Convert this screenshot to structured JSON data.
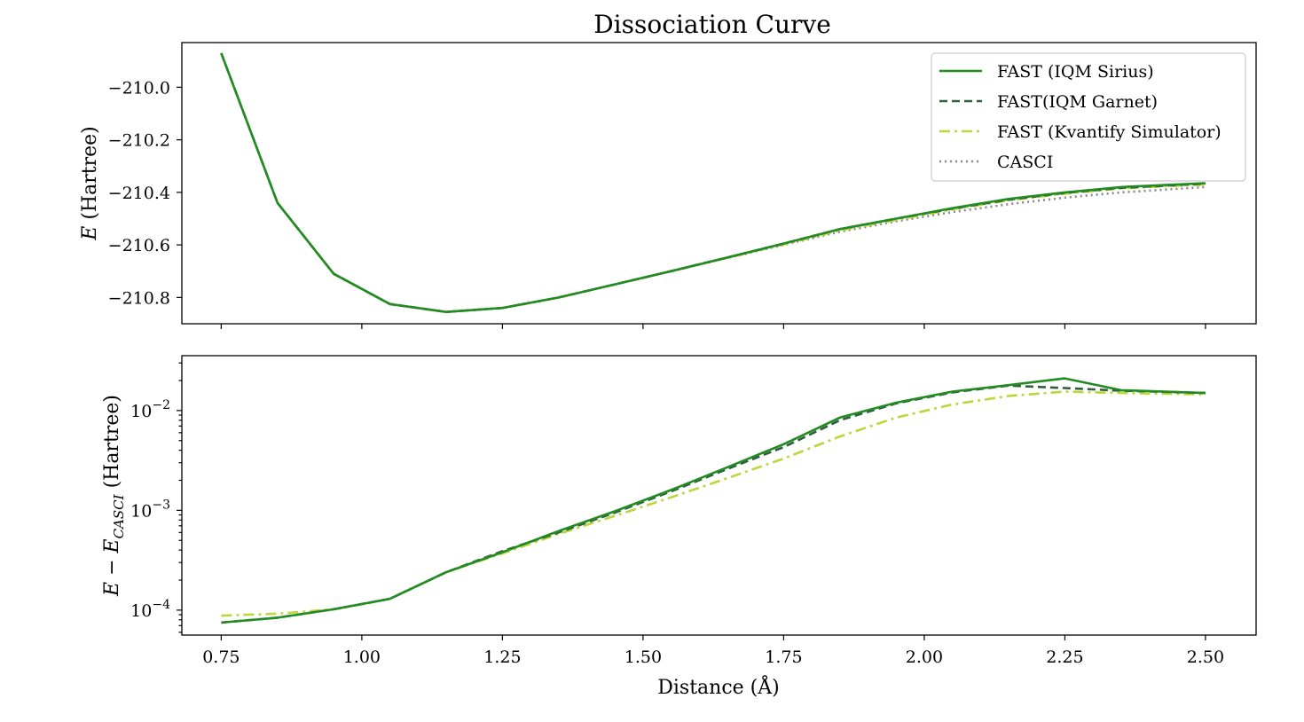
{
  "chart_data": {
    "title": "Dissociation Curve",
    "xlabel": "Distance (Å)",
    "x_ticks": [
      "0.75",
      "1.00",
      "1.25",
      "1.50",
      "1.75",
      "2.00",
      "2.25",
      "2.50"
    ],
    "xlim": [
      0.68,
      2.59
    ],
    "legend_placement": "top-right",
    "series_styles": [
      {
        "name": "FAST (IQM Sirius)",
        "color": "#228b22",
        "dash": "none"
      },
      {
        "name": "FAST(IQM Garnet)",
        "color": "#2f5f3f",
        "dash": "9,5"
      },
      {
        "name": "FAST (Kvantify Simulator)",
        "color": "#bcd63c",
        "dash": "12,5,3,5"
      },
      {
        "name": "CASCI",
        "color": "#888888",
        "dash": "2,4"
      }
    ],
    "panels": [
      {
        "type": "line",
        "ylabel": "E (Hartree)",
        "yscale": "linear",
        "ylim": [
          -210.9,
          -209.83
        ],
        "y_ticks": [
          -210.8,
          -210.6,
          -210.4,
          -210.2,
          -210.0
        ],
        "y_tick_labels": [
          "−210.8",
          "−210.6",
          "−210.4",
          "−210.2",
          "−210.0"
        ],
        "x": [
          0.75,
          0.85,
          0.95,
          1.05,
          1.15,
          1.25,
          1.35,
          1.45,
          1.55,
          1.65,
          1.75,
          1.85,
          1.95,
          2.05,
          2.15,
          2.25,
          2.35,
          2.5
        ],
        "series": [
          {
            "name": "FAST (IQM Sirius)",
            "values": [
              -209.87,
              -210.44,
              -210.71,
              -210.825,
              -210.855,
              -210.84,
              -210.8,
              -210.75,
              -210.7,
              -210.648,
              -210.595,
              -210.54,
              -210.5,
              -210.46,
              -210.425,
              -210.4,
              -210.38,
              -210.365
            ]
          },
          {
            "name": "FAST(IQM Garnet)",
            "values": [
              -209.87,
              -210.44,
              -210.71,
              -210.825,
              -210.855,
              -210.84,
              -210.8,
              -210.75,
              -210.7,
              -210.648,
              -210.595,
              -210.54,
              -210.5,
              -210.462,
              -210.428,
              -210.402,
              -210.383,
              -210.367
            ]
          },
          {
            "name": "FAST (Kvantify Simulator)",
            "values": [
              -209.87,
              -210.44,
              -210.71,
              -210.825,
              -210.855,
              -210.84,
              -210.8,
              -210.75,
              -210.7,
              -210.649,
              -210.598,
              -210.545,
              -210.505,
              -210.465,
              -210.43,
              -210.405,
              -210.385,
              -210.37
            ]
          },
          {
            "name": "CASCI",
            "values": [
              -209.87,
              -210.44,
              -210.71,
              -210.825,
              -210.855,
              -210.84,
              -210.8,
              -210.75,
              -210.7,
              -210.65,
              -210.6,
              -210.55,
              -210.51,
              -210.475,
              -210.445,
              -210.42,
              -210.4,
              -210.38
            ]
          }
        ]
      },
      {
        "type": "line",
        "ylabel": "E − E_CASCI (Hartree)",
        "yscale": "log",
        "ylim_log10": [
          -4.25,
          -1.45
        ],
        "y_ticks": [
          0.0001,
          0.001,
          0.01
        ],
        "y_tick_labels": [
          {
            "base": "10",
            "exp": "−4"
          },
          {
            "base": "10",
            "exp": "−3"
          },
          {
            "base": "10",
            "exp": "−2"
          }
        ],
        "x": [
          0.75,
          0.85,
          0.95,
          1.05,
          1.15,
          1.25,
          1.35,
          1.45,
          1.55,
          1.65,
          1.75,
          1.85,
          1.95,
          2.05,
          2.15,
          2.25,
          2.35,
          2.5
        ],
        "series": [
          {
            "name": "FAST (IQM Sirius)",
            "values": [
              7.5e-05,
              8.4e-05,
              0.000102,
              0.00013,
              0.00024,
              0.00038,
              0.00062,
              0.00098,
              0.0016,
              0.0027,
              0.0046,
              0.0085,
              0.012,
              0.0155,
              0.018,
              0.021,
              0.016,
              0.015
            ]
          },
          {
            "name": "FAST(IQM Garnet)",
            "values": [
              7.5e-05,
              8.4e-05,
              0.000102,
              0.00013,
              0.00024,
              0.00039,
              0.0006,
              0.00095,
              0.00155,
              0.0026,
              0.0043,
              0.008,
              0.0118,
              0.0152,
              0.0178,
              0.0168,
              0.0158,
              0.015
            ]
          },
          {
            "name": "FAST (Kvantify Simulator)",
            "values": [
              8.8e-05,
              9.2e-05,
              0.000102,
              0.00013,
              0.00024,
              0.00037,
              0.00058,
              0.00088,
              0.00135,
              0.0021,
              0.0033,
              0.0055,
              0.0085,
              0.0115,
              0.014,
              0.0155,
              0.015,
              0.0145
            ]
          }
        ]
      }
    ]
  }
}
